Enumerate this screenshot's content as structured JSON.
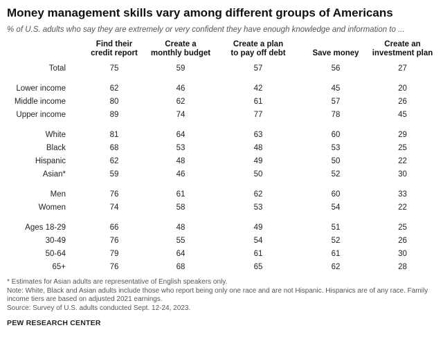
{
  "title": "Money management skills vary among different groups of Americans",
  "subtitle": "% of U.S. adults who say they are extremely or very confident they have enough knowledge and information to ...",
  "columns": [
    [
      "Find their",
      "credit report"
    ],
    [
      "Create a",
      "monthly budget"
    ],
    [
      "Create a plan",
      "to pay off debt"
    ],
    [
      "",
      "Save money"
    ],
    [
      "Create an",
      "investment plan"
    ]
  ],
  "groups": [
    [
      {
        "label": "Total",
        "values": [
          "75",
          "59",
          "57",
          "56",
          "27"
        ]
      }
    ],
    [
      {
        "label": "Lower income",
        "values": [
          "62",
          "46",
          "42",
          "45",
          "20"
        ]
      },
      {
        "label": "Middle income",
        "values": [
          "80",
          "62",
          "61",
          "57",
          "26"
        ]
      },
      {
        "label": "Upper income",
        "values": [
          "89",
          "74",
          "77",
          "78",
          "45"
        ]
      }
    ],
    [
      {
        "label": "White",
        "values": [
          "81",
          "64",
          "63",
          "60",
          "29"
        ]
      },
      {
        "label": "Black",
        "values": [
          "68",
          "53",
          "48",
          "53",
          "25"
        ]
      },
      {
        "label": "Hispanic",
        "values": [
          "62",
          "48",
          "49",
          "50",
          "22"
        ]
      },
      {
        "label": "Asian*",
        "values": [
          "59",
          "46",
          "50",
          "52",
          "30"
        ]
      }
    ],
    [
      {
        "label": "Men",
        "values": [
          "76",
          "61",
          "62",
          "60",
          "33"
        ]
      },
      {
        "label": "Women",
        "values": [
          "74",
          "58",
          "53",
          "54",
          "22"
        ]
      }
    ],
    [
      {
        "label": "Ages 18-29",
        "values": [
          "66",
          "48",
          "49",
          "51",
          "25"
        ]
      },
      {
        "label": "30-49",
        "values": [
          "76",
          "55",
          "54",
          "52",
          "26"
        ]
      },
      {
        "label": "50-64",
        "values": [
          "79",
          "64",
          "61",
          "61",
          "30"
        ]
      },
      {
        "label": "65+",
        "values": [
          "76",
          "68",
          "65",
          "62",
          "28"
        ]
      }
    ]
  ],
  "notes": {
    "asterisk": "* Estimates for Asian adults are representative of English speakers only.",
    "note": "Note: White, Black and Asian adults include those who report being only one race and are not Hispanic. Hispanics are of any race. Family income tiers are based on adjusted 2021 earnings.",
    "source": "Source: Survey of U.S. adults conducted Sept. 12-24, 2023."
  },
  "brand": "PEW RESEARCH CENTER"
}
